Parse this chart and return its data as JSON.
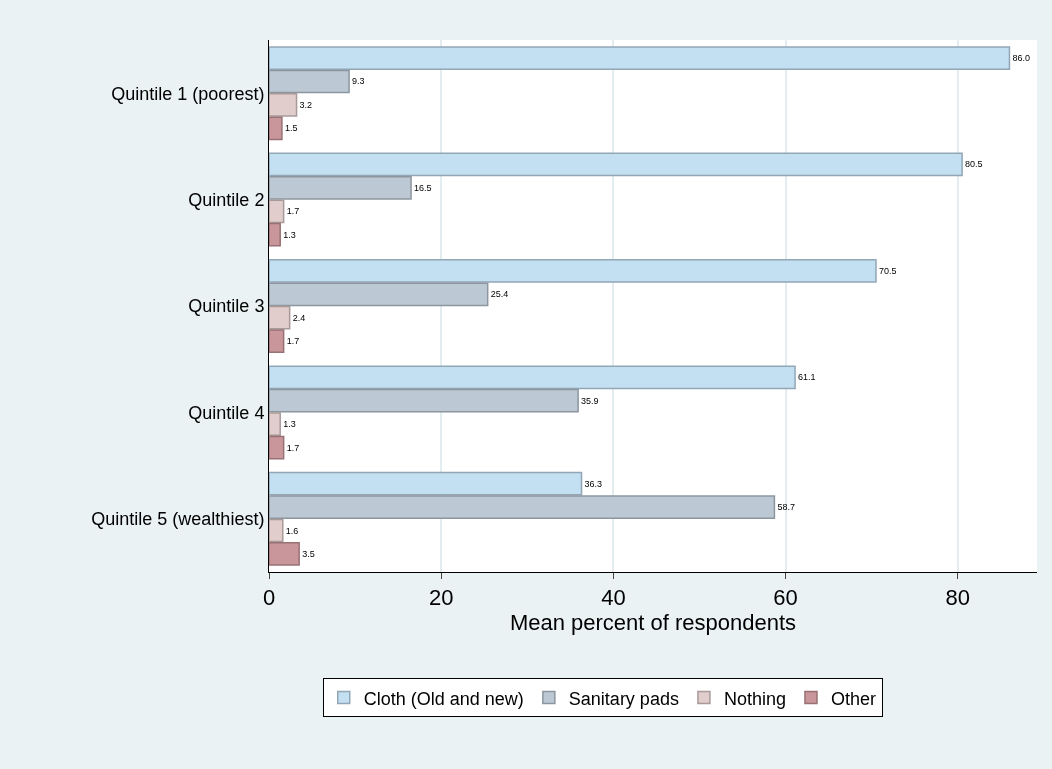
{
  "chart_data": {
    "type": "bar",
    "orientation": "horizontal",
    "xlabel": "Mean percent of respondents",
    "categories": [
      "Quintile 1 (poorest)",
      "Quintile 2",
      "Quintile 3",
      "Quintile 4",
      "Quintile 5 (wealthiest)"
    ],
    "series": [
      {
        "name": "Cloth (Old and new)",
        "color": "#c3dff2",
        "values": [
          86.0,
          80.5,
          70.5,
          61.1,
          36.3
        ],
        "value_labels": [
          "86.0",
          "80.5",
          "70.5",
          "61.1",
          "36.3"
        ]
      },
      {
        "name": "Sanitary pads",
        "color": "#bcc8d4",
        "values": [
          9.3,
          16.5,
          25.4,
          35.9,
          58.7
        ],
        "value_labels": [
          "9.3",
          "16.5",
          "25.4",
          "35.9",
          "58.7"
        ]
      },
      {
        "name": "Nothing",
        "color": "#e0cdcc",
        "values": [
          3.2,
          1.7,
          2.4,
          1.3,
          1.6
        ],
        "value_labels": [
          "3.2",
          "1.7",
          "2.4",
          "1.3",
          "1.6"
        ]
      },
      {
        "name": "Other",
        "color": "#c9969b",
        "values": [
          1.5,
          1.3,
          1.7,
          1.7,
          3.5
        ],
        "value_labels": [
          "1.5",
          "1.3",
          "1.7",
          "1.7",
          "3.5"
        ]
      }
    ],
    "xlim": [
      0,
      89.2
    ],
    "xticks": [
      0,
      20,
      40,
      60,
      80
    ],
    "grid": "x",
    "legend": "bottom"
  }
}
